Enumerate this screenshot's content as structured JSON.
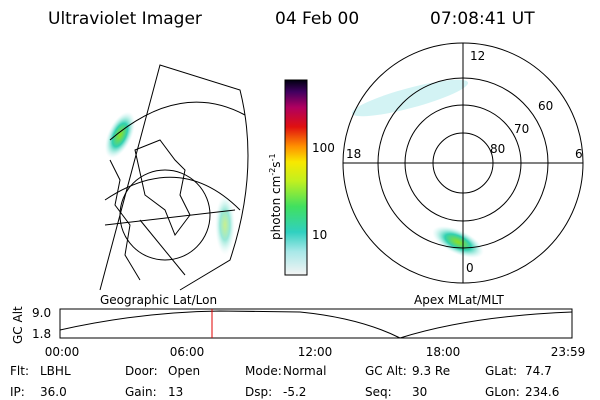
{
  "header": {
    "title": "Ultraviolet Imager",
    "date": "04 Feb 00",
    "time": "07:08:41 UT"
  },
  "colorbar": {
    "ticks": [
      "100",
      "10"
    ],
    "unit": {
      "base": "photon cm",
      "exp1": "-2",
      "mid": "s",
      "exp2": "-1"
    }
  },
  "left_panel": {
    "label": "Geographic Lat/Lon"
  },
  "right_panel": {
    "label": "Apex MLat/MLT",
    "lat_labels": [
      "60",
      "70",
      "80"
    ],
    "mlt_labels": {
      "top": "12",
      "left": "18",
      "right": "6",
      "bottom": "0"
    }
  },
  "altitude": {
    "axis_label": "GC Alt",
    "max": "9.0",
    "min": "1.8",
    "times": [
      "00:00",
      "06:00",
      "12:00",
      "18:00",
      "23:59"
    ]
  },
  "footer": {
    "rows": [
      [
        {
          "label": "Flt:",
          "value": "LBHL"
        },
        {
          "label": "Door:",
          "value": "Open"
        },
        {
          "label": "Mode:",
          "value": "Normal"
        },
        {
          "label": "GC Alt:",
          "value": "9.3 Re"
        },
        {
          "label": "GLat:",
          "value": "74.7"
        }
      ],
      [
        {
          "label": "IP:",
          "value": "36.0"
        },
        {
          "label": "Gain:",
          "value": "13"
        },
        {
          "label": "Dsp:",
          "value": "-5.2"
        },
        {
          "label": "Seq:",
          "value": "30"
        },
        {
          "label": "GLon:",
          "value": "234.6"
        }
      ]
    ]
  }
}
